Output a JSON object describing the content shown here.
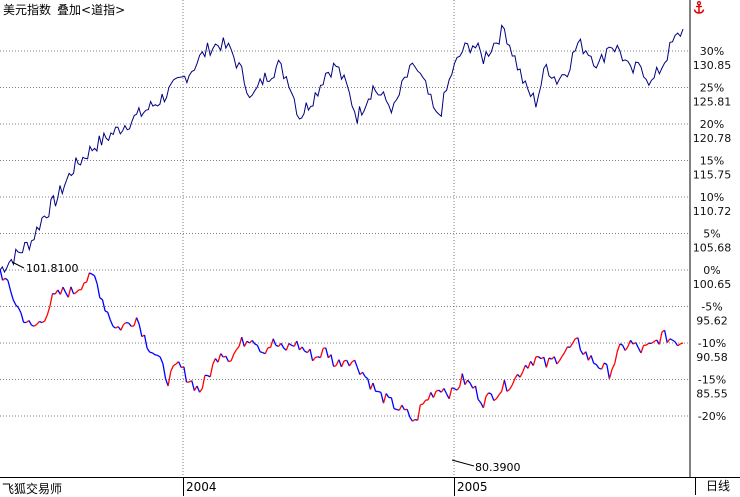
{
  "header": {
    "title": "美元指数",
    "overlay": "叠加<道指>"
  },
  "footer": {
    "app_name": "飞狐交易师",
    "x_labels": [
      "2004",
      "2005"
    ],
    "period": "日线"
  },
  "colors": {
    "background": "#ffffff",
    "grid": "#808080",
    "upper_series": "#000080",
    "lower_series_up": "#ff0000",
    "lower_series_down": "#0000ff",
    "anchor_icon": "#e00000"
  },
  "icons": {
    "anchor": "anchor-icon"
  },
  "chart_data": {
    "type": "line",
    "title": "美元指数",
    "overlay": "道指",
    "grid": true,
    "y_right_percent_ticks": [
      "30%",
      "25%",
      "20%",
      "15%",
      "10%",
      "5%",
      "0%",
      "-5%",
      "-10%",
      "-15%",
      "-20%"
    ],
    "y_right_price_ticks": [
      "130.85",
      "125.81",
      "120.78",
      "115.75",
      "110.72",
      "105.68",
      "100.65",
      "95.62",
      "90.58",
      "85.55"
    ],
    "x_ticks": [
      "2004",
      "2005"
    ],
    "annotations": [
      {
        "text": "101.8100"
      },
      {
        "text": "80.3900"
      }
    ],
    "series": [
      {
        "name": "道指",
        "y_unit": "%",
        "points": [
          [
            0,
            0
          ],
          [
            3,
            2
          ],
          [
            6,
            4
          ],
          [
            8,
            7
          ],
          [
            11,
            10
          ],
          [
            14,
            14
          ],
          [
            18,
            17
          ],
          [
            22,
            19
          ],
          [
            26,
            21
          ],
          [
            30,
            23
          ],
          [
            33,
            25
          ],
          [
            36,
            27
          ],
          [
            38,
            29
          ],
          [
            40,
            30.5
          ],
          [
            42,
            31
          ],
          [
            44,
            30
          ],
          [
            46,
            27
          ],
          [
            48,
            23.5
          ],
          [
            50,
            26
          ],
          [
            53,
            28
          ],
          [
            55,
            26
          ],
          [
            57,
            21
          ],
          [
            60,
            24
          ],
          [
            62,
            27
          ],
          [
            64,
            28
          ],
          [
            66,
            25
          ],
          [
            68,
            21
          ],
          [
            71,
            25
          ],
          [
            73,
            23.5
          ],
          [
            75,
            22
          ],
          [
            77,
            26
          ],
          [
            79,
            28
          ],
          [
            81,
            25
          ],
          [
            83,
            21
          ],
          [
            84,
            22
          ],
          [
            86,
            27
          ],
          [
            88,
            30
          ],
          [
            90,
            31
          ],
          [
            92,
            29
          ],
          [
            94,
            31
          ],
          [
            96,
            33
          ],
          [
            98,
            29
          ],
          [
            99,
            27
          ],
          [
            100,
            25
          ],
          [
            102,
            23
          ],
          [
            104,
            28
          ],
          [
            106,
            26
          ],
          [
            108,
            27.5
          ],
          [
            110,
            31
          ],
          [
            112,
            30
          ],
          [
            114,
            28
          ],
          [
            116,
            31
          ],
          [
            118,
            30
          ],
          [
            120,
            27
          ],
          [
            122,
            28
          ],
          [
            124,
            25.5
          ],
          [
            126,
            28
          ],
          [
            128,
            31
          ],
          [
            130,
            33
          ]
        ]
      },
      {
        "name": "美元指数",
        "y_unit": "%",
        "points": [
          [
            0,
            0
          ],
          [
            2,
            -3
          ],
          [
            4,
            -6
          ],
          [
            6,
            -8
          ],
          [
            8,
            -7
          ],
          [
            10,
            -4
          ],
          [
            12,
            -3
          ],
          [
            14,
            -3
          ],
          [
            16,
            -1.5
          ],
          [
            18,
            -1
          ],
          [
            20,
            -5
          ],
          [
            22,
            -8
          ],
          [
            24,
            -7.5
          ],
          [
            26,
            -6.5
          ],
          [
            28,
            -10
          ],
          [
            30,
            -12
          ],
          [
            32,
            -15
          ],
          [
            34,
            -13
          ],
          [
            36,
            -15
          ],
          [
            38,
            -16.5
          ],
          [
            40,
            -14
          ],
          [
            42,
            -11
          ],
          [
            44,
            -12
          ],
          [
            46,
            -10
          ],
          [
            48,
            -9
          ],
          [
            50,
            -11
          ],
          [
            52,
            -10
          ],
          [
            54,
            -11
          ],
          [
            56,
            -10
          ],
          [
            58,
            -11
          ],
          [
            60,
            -12
          ],
          [
            62,
            -11
          ],
          [
            64,
            -13
          ],
          [
            66,
            -12
          ],
          [
            68,
            -13
          ],
          [
            70,
            -15
          ],
          [
            72,
            -17
          ],
          [
            74,
            -18
          ],
          [
            76,
            -19
          ],
          [
            78,
            -20
          ],
          [
            79,
            -21
          ],
          [
            80,
            -19
          ],
          [
            82,
            -17
          ],
          [
            84,
            -16
          ],
          [
            86,
            -17
          ],
          [
            88,
            -15
          ],
          [
            90,
            -16
          ],
          [
            92,
            -18
          ],
          [
            94,
            -17
          ],
          [
            96,
            -16
          ],
          [
            98,
            -15
          ],
          [
            100,
            -13
          ],
          [
            102,
            -12
          ],
          [
            104,
            -13
          ],
          [
            106,
            -12
          ],
          [
            108,
            -11
          ],
          [
            110,
            -10
          ],
          [
            112,
            -12
          ],
          [
            114,
            -13
          ],
          [
            116,
            -14
          ],
          [
            118,
            -11
          ],
          [
            120,
            -10
          ],
          [
            122,
            -11
          ],
          [
            124,
            -10.5
          ],
          [
            126,
            -9
          ],
          [
            128,
            -9.5
          ],
          [
            130,
            -10
          ]
        ]
      }
    ]
  }
}
